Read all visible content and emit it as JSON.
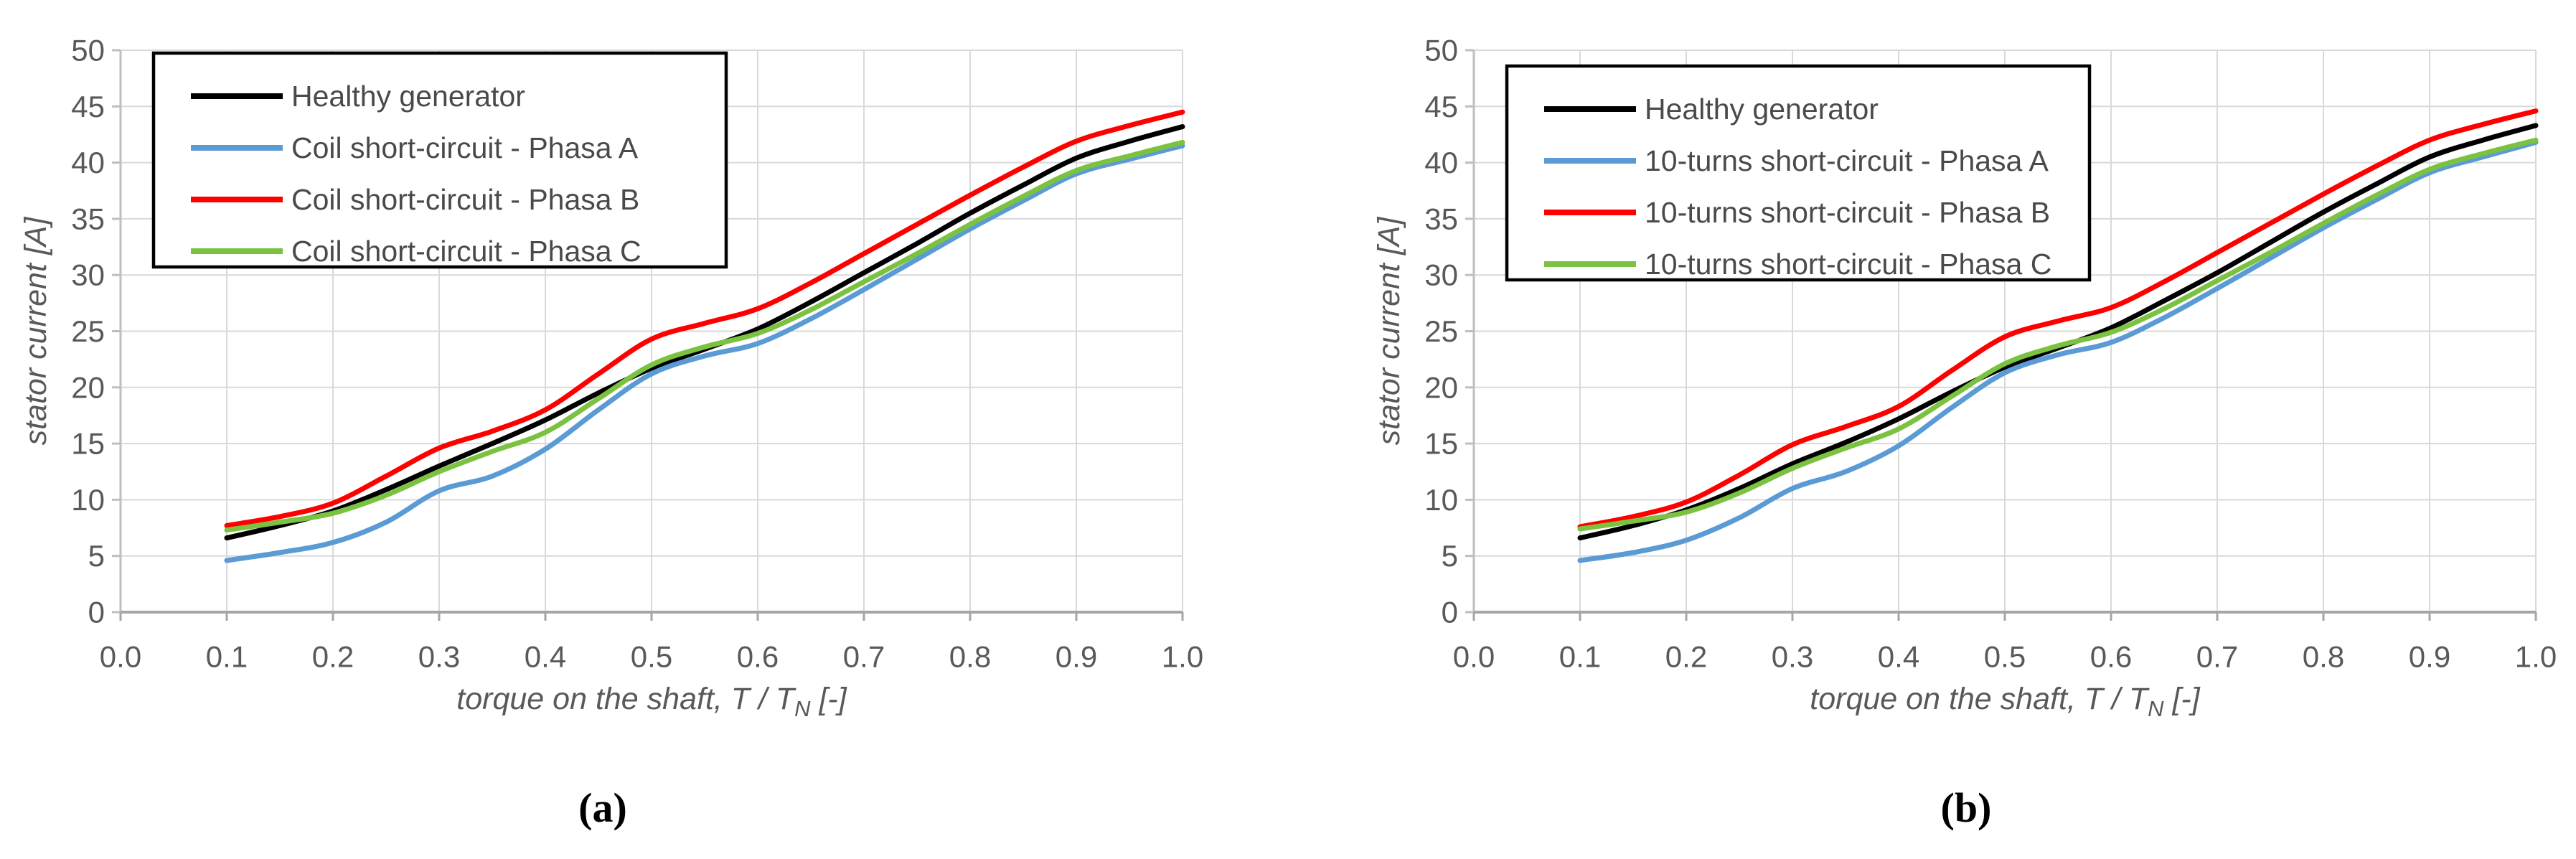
{
  "figure": {
    "captions": [
      "(a)",
      "(b)"
    ]
  },
  "styles": {
    "background": "#ffffff",
    "grid_color": "#d9d9d9",
    "axis_color": "#a6a6a6",
    "axis_y_color": "#bfbfbf",
    "tick_text_color": "#595959",
    "title_text_color": "#595959",
    "legend_text_color": "#4a4a4a",
    "legend_border_color": "#000000",
    "series_black": "#000000",
    "series_blue": "#5b9bd5",
    "series_red": "#ff0000",
    "series_green": "#7cc241"
  },
  "chart_data": [
    {
      "id": "a",
      "type": "line",
      "title": "",
      "ylabel": "stator current [A]",
      "xlabel": {
        "prefix": "torque on the shaft, T / T",
        "sub": "N",
        "suffix": " [-]"
      },
      "xlim": [
        0.0,
        1.0
      ],
      "ylim": [
        0,
        50
      ],
      "xticks": [
        "0.0",
        "0.1",
        "0.2",
        "0.3",
        "0.4",
        "0.5",
        "0.6",
        "0.7",
        "0.8",
        "0.9",
        "1.0"
      ],
      "yticks": [
        "0",
        "5",
        "10",
        "15",
        "20",
        "25",
        "30",
        "35",
        "40",
        "45",
        "50"
      ],
      "grid": true,
      "legend_position": "top-left-inside",
      "x": [
        0.1,
        0.15,
        0.2,
        0.25,
        0.3,
        0.35,
        0.4,
        0.45,
        0.5,
        0.55,
        0.6,
        0.65,
        0.7,
        0.75,
        0.8,
        0.85,
        0.9,
        0.95,
        1.0
      ],
      "series": [
        {
          "name": "Healthy generator",
          "color_key": "series_black",
          "values": [
            6.6,
            7.7,
            9.0,
            10.9,
            13.0,
            15.0,
            17.1,
            19.5,
            21.7,
            23.4,
            25.2,
            27.6,
            30.2,
            32.8,
            35.5,
            38.0,
            40.4,
            41.9,
            43.2
          ]
        },
        {
          "name": "Coil short-circuit - Phasa A",
          "color_key": "series_blue",
          "values": [
            4.6,
            5.3,
            6.2,
            8.0,
            10.8,
            12.1,
            14.5,
            18.0,
            21.2,
            22.8,
            23.9,
            26.1,
            28.7,
            31.4,
            34.1,
            36.6,
            39.0,
            40.3,
            41.5
          ]
        },
        {
          "name": "Coil short-circuit - Phasa B",
          "color_key": "series_red",
          "values": [
            7.7,
            8.5,
            9.7,
            12.1,
            14.6,
            16.1,
            18.0,
            21.2,
            24.3,
            25.7,
            27.0,
            29.3,
            31.9,
            34.5,
            37.1,
            39.6,
            41.9,
            43.3,
            44.5
          ]
        },
        {
          "name": "Coil short-circuit - Phasa C",
          "color_key": "series_green",
          "values": [
            7.3,
            8.0,
            8.8,
            10.4,
            12.5,
            14.3,
            16.0,
            19.0,
            22.0,
            23.6,
            24.8,
            26.9,
            29.4,
            31.9,
            34.5,
            37.0,
            39.3,
            40.6,
            41.8
          ]
        }
      ]
    },
    {
      "id": "b",
      "type": "line",
      "title": "",
      "ylabel": "stator current [A]",
      "xlabel": {
        "prefix": "torque on the shaft, T / T",
        "sub": "N",
        "suffix": " [-]"
      },
      "xlim": [
        0.0,
        1.0
      ],
      "ylim": [
        0,
        50
      ],
      "xticks": [
        "0.0",
        "0.1",
        "0.2",
        "0.3",
        "0.4",
        "0.5",
        "0.6",
        "0.7",
        "0.8",
        "0.9",
        "1.0"
      ],
      "yticks": [
        "0",
        "5",
        "10",
        "15",
        "20",
        "25",
        "30",
        "35",
        "40",
        "45",
        "50"
      ],
      "grid": true,
      "legend_position": "top-left-inside",
      "x": [
        0.1,
        0.15,
        0.2,
        0.25,
        0.3,
        0.35,
        0.4,
        0.45,
        0.5,
        0.55,
        0.6,
        0.65,
        0.7,
        0.75,
        0.8,
        0.85,
        0.9,
        0.95,
        1.0
      ],
      "series": [
        {
          "name": "Healthy generator",
          "color_key": "series_black",
          "values": [
            6.6,
            7.7,
            9.1,
            11.0,
            13.2,
            15.1,
            17.2,
            19.6,
            21.8,
            23.5,
            25.3,
            27.7,
            30.2,
            32.9,
            35.6,
            38.1,
            40.5,
            42.0,
            43.3
          ]
        },
        {
          "name": "10-turns short-circuit - Phasa A",
          "color_key": "series_blue",
          "values": [
            4.6,
            5.3,
            6.4,
            8.4,
            11.0,
            12.5,
            14.8,
            18.2,
            21.3,
            22.9,
            24.0,
            26.2,
            28.8,
            31.5,
            34.2,
            36.7,
            39.1,
            40.5,
            41.8
          ]
        },
        {
          "name": "10-turns short-circuit - Phasa B",
          "color_key": "series_red",
          "values": [
            7.6,
            8.5,
            9.8,
            12.2,
            14.9,
            16.5,
            18.3,
            21.5,
            24.5,
            25.9,
            27.1,
            29.4,
            32.0,
            34.6,
            37.2,
            39.7,
            42.0,
            43.4,
            44.6
          ]
        },
        {
          "name": "10-turns short-circuit - Phasa C",
          "color_key": "series_green",
          "values": [
            7.4,
            8.1,
            8.9,
            10.6,
            12.8,
            14.6,
            16.3,
            19.2,
            22.1,
            23.7,
            24.9,
            27.0,
            29.5,
            32.0,
            34.6,
            37.1,
            39.4,
            40.8,
            42.0
          ]
        }
      ]
    }
  ]
}
